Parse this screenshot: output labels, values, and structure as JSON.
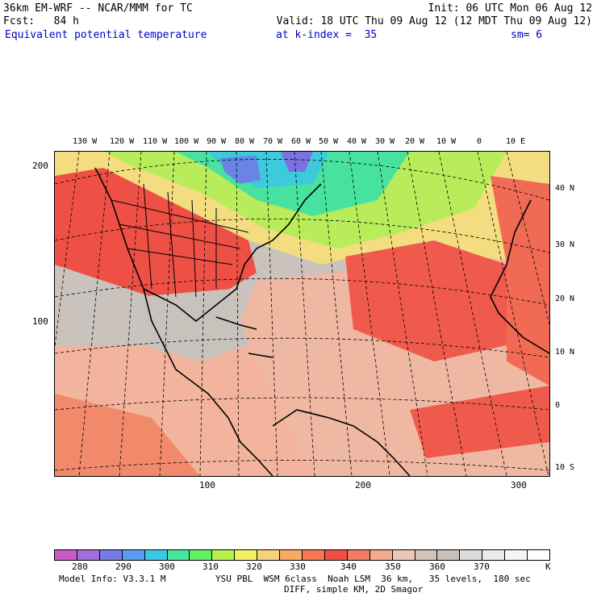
{
  "header": {
    "line1_left": "36km EM-WRF -- NCAR/MMM for TC",
    "line1_right": "Init: 06 UTC Mon 06 Aug 12",
    "line2_left": "Fcst:   84 h",
    "line2_right": "Valid: 18 UTC Thu 09 Aug 12 (12 MDT Thu 09 Aug 12)",
    "line3_left": "Equivalent potential temperature",
    "line3_mid": "at k-index =  35",
    "line3_right": "sm= 6"
  },
  "axes": {
    "left_ticks": [
      "200",
      "100"
    ],
    "bottom_ticks": [
      "100",
      "200",
      "300"
    ],
    "longitude_labels": [
      "130 W",
      "120 W",
      "110 W",
      "100 W",
      "90 W",
      "80 W",
      "70 W",
      "60 W",
      "50 W",
      "40 W",
      "30 W",
      "20 W",
      "10 W",
      "0",
      "10 E"
    ],
    "latitude_labels": [
      "40 N",
      "30 N",
      "20 N",
      "10 N",
      "0",
      "10 S"
    ]
  },
  "colorbar": {
    "labels": [
      "280",
      "290",
      "300",
      "310",
      "320",
      "330",
      "340",
      "350",
      "360",
      "370"
    ],
    "unit": "K",
    "colors": [
      "#c85ac8",
      "#a070d8",
      "#7a7ae6",
      "#5a9cf0",
      "#3cc8e6",
      "#46e6a0",
      "#64f064",
      "#b4f050",
      "#f0f064",
      "#f8d278",
      "#f8aa64",
      "#f47850",
      "#ee5046",
      "#f07c64",
      "#f4a890",
      "#ecc8b4",
      "#d2c4b8",
      "#c8c0bc",
      "#dcdcdc",
      "#ececec",
      "#f6f6f6",
      "#ffffff"
    ]
  },
  "footer": {
    "line1_left": "Model Info: V3.3.1 M",
    "line1_right": "YSU PBL  WSM 6class  Noah LSM  36 km,   35 levels,  180 sec",
    "line2": "DIFF, simple KM, 2D Smagor"
  }
}
